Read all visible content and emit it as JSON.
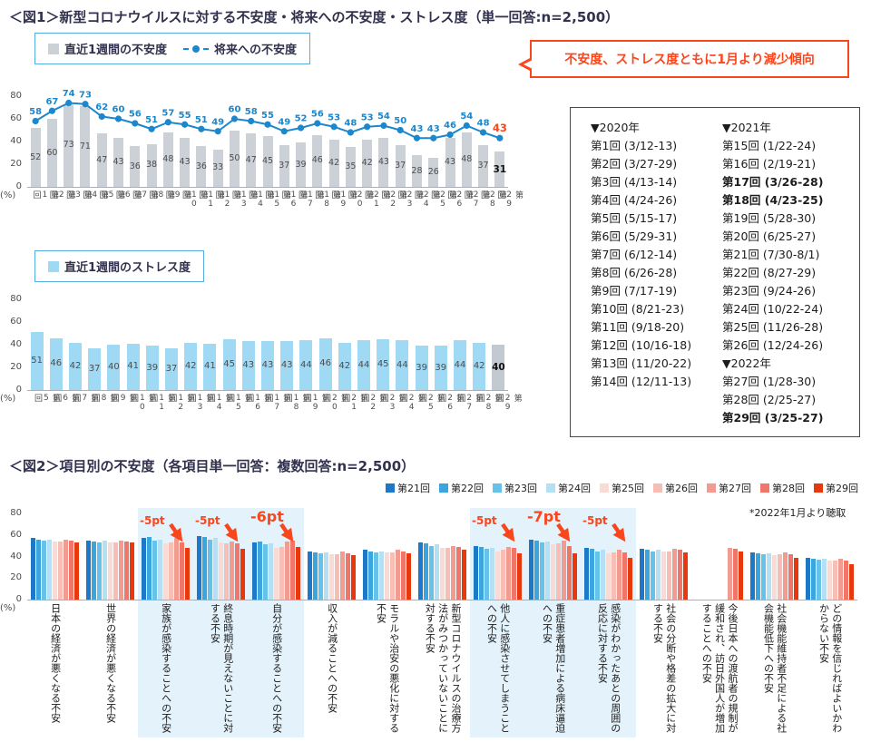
{
  "fig1": {
    "title": "＜図1＞新型コロナウイルスに対する不安度・将来への不安度・ストレス度（単一回答:n=2,500）",
    "legend_bar": "直近1週間の不安度",
    "legend_line": "将来への不安度",
    "legend_stress": "直近1週間のストレス度",
    "callout": "不安度、ストレス度ともに1月より減少傾向",
    "y_unit": "(%)"
  },
  "fig2": {
    "title": "＜図2＞項目別の不安度（各項目単一回答：複数回答:n=2,500）",
    "note": "*2022年1月より聴取",
    "y_unit": "(%)"
  },
  "colors": {
    "bar_gray": "#ccd1d8",
    "line_blue": "#1b87cc",
    "stress_blue": "#9fd9f4",
    "latest_gray": "#c3c9d1",
    "accent_red": "#f9461c",
    "highlight_blue": "#e3f2fb"
  },
  "schedule": {
    "groups": [
      {
        "year_label": "▼2020年",
        "items": [
          {
            "label": "第1回 (3/12-13)",
            "bold": false
          },
          {
            "label": "第2回 (3/27-29)",
            "bold": false
          },
          {
            "label": "第3回 (4/13-14)",
            "bold": false
          },
          {
            "label": "第4回 (4/24-26)",
            "bold": false
          },
          {
            "label": "第5回 (5/15-17)",
            "bold": false
          },
          {
            "label": "第6回 (5/29-31)",
            "bold": false
          },
          {
            "label": "第7回 (6/12-14)",
            "bold": false
          },
          {
            "label": "第8回 (6/26-28)",
            "bold": false
          },
          {
            "label": "第9回 (7/17-19)",
            "bold": false
          },
          {
            "label": "第10回 (8/21-23)",
            "bold": false
          },
          {
            "label": "第11回 (9/18-20)",
            "bold": false
          },
          {
            "label": "第12回 (10/16-18)",
            "bold": false
          },
          {
            "label": "第13回 (11/20-22)",
            "bold": false
          },
          {
            "label": "第14回 (12/11-13)",
            "bold": false
          }
        ]
      },
      {
        "year_label": "▼2021年",
        "items": [
          {
            "label": "第15回 (1/22-24)",
            "bold": false
          },
          {
            "label": "第16回 (2/19-21)",
            "bold": false
          },
          {
            "label": "第17回 (3/26-28)",
            "bold": true
          },
          {
            "label": "第18回 (4/23-25)",
            "bold": true
          },
          {
            "label": "第19回 (5/28-30)",
            "bold": false
          },
          {
            "label": "第20回 (6/25-27)",
            "bold": false
          },
          {
            "label": "第21回 (7/30-8/1)",
            "bold": false
          },
          {
            "label": "第22回 (8/27-29)",
            "bold": false
          },
          {
            "label": "第23回 (9/24-26)",
            "bold": false
          },
          {
            "label": "第24回 (10/22-24)",
            "bold": false
          },
          {
            "label": "第25回 (11/26-28)",
            "bold": false
          },
          {
            "label": "第26回 (12/24-26)",
            "bold": false
          }
        ]
      },
      {
        "year_label": "▼2022年",
        "items": [
          {
            "label": "第27回 (1/28-30)",
            "bold": false
          },
          {
            "label": "第28回 (2/25-27)",
            "bold": false
          },
          {
            "label": "第29回 (3/25-27)",
            "bold": true
          }
        ]
      }
    ]
  },
  "chart_data": [
    {
      "id": "anxiety-trend",
      "type": "bar",
      "title": "新型コロナウイルスに対する不安度・将来への不安度",
      "categories": [
        "第1回",
        "第2回",
        "第3回",
        "第4回",
        "第5回",
        "第6回",
        "第7回",
        "第8回",
        "第9回",
        "第10回",
        "第11回",
        "第12回",
        "第13回",
        "第14回",
        "第15回",
        "第16回",
        "第17回",
        "第18回",
        "第19回",
        "第20回",
        "第21回",
        "第22回",
        "第23回",
        "第24回",
        "第25回",
        "第26回",
        "第27回",
        "第28回",
        "第29回"
      ],
      "series": [
        {
          "name": "直近1週間の不安度",
          "kind": "bar",
          "color": "#ccd1d8",
          "values": [
            52,
            60,
            73,
            71,
            47,
            43,
            36,
            38,
            48,
            43,
            36,
            33,
            50,
            47,
            45,
            37,
            39,
            46,
            42,
            35,
            42,
            43,
            37,
            28,
            26,
            43,
            48,
            37,
            31
          ]
        },
        {
          "name": "将来への不安度",
          "kind": "line",
          "color": "#1b87cc",
          "values": [
            58,
            67,
            74,
            73,
            62,
            60,
            56,
            51,
            57,
            55,
            51,
            49,
            60,
            58,
            55,
            49,
            52,
            56,
            53,
            48,
            53,
            54,
            50,
            43,
            43,
            46,
            54,
            48,
            43
          ]
        }
      ],
      "ylim": [
        0,
        80
      ],
      "yticks": [
        0,
        20,
        40,
        60,
        80
      ],
      "ylabel": "(%)",
      "legend_position": "top-left"
    },
    {
      "id": "stress-trend",
      "type": "bar",
      "title": "直近1週間のストレス度",
      "categories": [
        "第5回",
        "第6回",
        "第7回",
        "第8回",
        "第9回",
        "第10回",
        "第11回",
        "第12回",
        "第13回",
        "第14回",
        "第15回",
        "第16回",
        "第17回",
        "第18回",
        "第19回",
        "第20回",
        "第21回",
        "第22回",
        "第23回",
        "第24回",
        "第25回",
        "第26回",
        "第27回",
        "第28回",
        "第29回"
      ],
      "series": [
        {
          "name": "直近1週間のストレス度",
          "kind": "bar",
          "color": "#9fd9f4",
          "values": [
            51,
            46,
            42,
            37,
            40,
            41,
            39,
            37,
            42,
            41,
            45,
            43,
            43,
            43,
            44,
            46,
            42,
            44,
            45,
            44,
            39,
            39,
            44,
            42,
            40
          ]
        }
      ],
      "latest_color": "#c3c9d1",
      "ylim": [
        0,
        80
      ],
      "yticks": [
        0,
        20,
        40,
        60,
        80
      ],
      "ylabel": "(%)",
      "legend_position": "top-left"
    },
    {
      "id": "anxiety-by-item",
      "type": "bar",
      "title": "項目別の不安度",
      "categories": [
        "日本の経済が悪くなる不安",
        "世界の経済が悪くなる不安",
        "家族が感染することへの不安",
        "終息時期が見えないことに対する不安",
        "自分が感染することへの不安",
        "収入が減ることへの不安",
        "モラルや治安の悪化に対する不安",
        "新型コロナウイルスの治療方法がみつかっていないことに対する不安",
        "他人に感染させてしまうことへの不安",
        "重症患者増加による病床逼迫への不安",
        "感染がわかったあとの周囲の反応に対する不安",
        "社会の分断や格差の拡大に対する不安",
        "今後日本への渡航者の規制が緩和され、訪日外国人が増加することへの不安",
        "社会機能維持者不足による社会機能低下への不安",
        "どの情報を信じればよいかわからない不安"
      ],
      "series": [
        {
          "name": "第21回",
          "color": "#1e78c8",
          "values": [
            57,
            55,
            57,
            59,
            53,
            45,
            46,
            53,
            50,
            56,
            48,
            47,
            null,
            44,
            39
          ]
        },
        {
          "name": "第22回",
          "color": "#3aa6dd",
          "values": [
            56,
            54,
            58,
            58,
            54,
            44,
            45,
            52,
            49,
            55,
            47,
            46,
            null,
            43,
            38
          ]
        },
        {
          "name": "第23回",
          "color": "#67c2ea",
          "values": [
            55,
            53,
            55,
            56,
            51,
            43,
            44,
            50,
            47,
            53,
            45,
            45,
            null,
            42,
            37
          ]
        },
        {
          "name": "第24回",
          "color": "#b5e0f3",
          "values": [
            56,
            55,
            56,
            57,
            52,
            44,
            45,
            51,
            48,
            54,
            46,
            46,
            null,
            43,
            38
          ]
        },
        {
          "name": "第25回",
          "color": "#f9dbd6",
          "values": [
            54,
            53,
            52,
            53,
            48,
            42,
            44,
            48,
            45,
            51,
            43,
            45,
            null,
            41,
            36
          ]
        },
        {
          "name": "第26回",
          "color": "#f6beb5",
          "values": [
            54,
            53,
            53,
            52,
            49,
            42,
            44,
            48,
            46,
            52,
            44,
            45,
            null,
            42,
            36
          ]
        },
        {
          "name": "第27回",
          "color": "#f29b90",
          "values": [
            56,
            55,
            57,
            54,
            54,
            45,
            46,
            50,
            49,
            55,
            46,
            47,
            48,
            44,
            38
          ]
        },
        {
          "name": "第28回",
          "color": "#ef7668",
          "values": [
            55,
            54,
            53,
            52,
            55,
            43,
            45,
            49,
            48,
            50,
            44,
            46,
            47,
            42,
            36
          ]
        },
        {
          "name": "第29回",
          "color": "#e8380d",
          "values": [
            53,
            53,
            48,
            47,
            49,
            41,
            43,
            46,
            43,
            43,
            39,
            44,
            45,
            39,
            33
          ]
        }
      ],
      "highlight_category_ranges": [
        [
          2,
          4
        ],
        [
          8,
          10
        ]
      ],
      "annotations": [
        {
          "category_index": 2,
          "label": "-5pt",
          "emphasis": false
        },
        {
          "category_index": 3,
          "label": "-5pt",
          "emphasis": false
        },
        {
          "category_index": 4,
          "label": "-6pt",
          "emphasis": true
        },
        {
          "category_index": 8,
          "label": "-5pt",
          "emphasis": false
        },
        {
          "category_index": 9,
          "label": "-7pt",
          "emphasis": true
        },
        {
          "category_index": 10,
          "label": "-5pt",
          "emphasis": false
        }
      ],
      "note": "*2022年1月より聴取",
      "ylim": [
        0,
        80
      ],
      "yticks": [
        0,
        20,
        40,
        60,
        80
      ],
      "ylabel": "(%)",
      "legend_position": "top-right"
    }
  ]
}
